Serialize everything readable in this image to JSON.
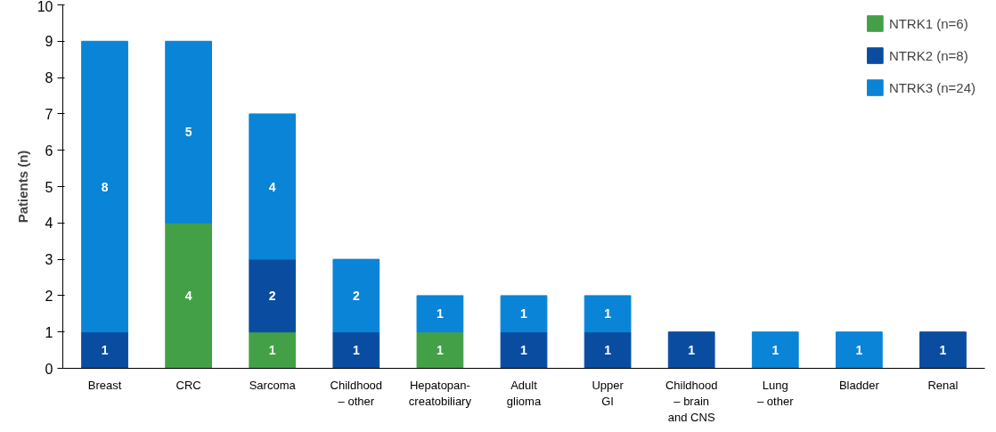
{
  "chart_data": {
    "type": "bar",
    "stacked": true,
    "ylabel": "Patients (n)",
    "categories": [
      "Breast",
      "CRC",
      "Sarcoma",
      "Childhood\n– other",
      "Hepatopan-\ncreatobiliary",
      "Adult\nglioma",
      "Upper\nGI",
      "Childhood\n– brain\nand CNS",
      "Lung\n– other",
      "Bladder",
      "Renal"
    ],
    "series": [
      {
        "name": "NTRK1 (n=6)",
        "color": "#43a047",
        "values": [
          null,
          4,
          1,
          null,
          1,
          null,
          null,
          null,
          null,
          null,
          null
        ]
      },
      {
        "name": "NTRK2 (n=8)",
        "color": "#0a4da0",
        "values": [
          1,
          null,
          2,
          1,
          null,
          1,
          1,
          1,
          null,
          null,
          1
        ]
      },
      {
        "name": "NTRK3 (n=24)",
        "color": "#0a84d6",
        "values": [
          8,
          5,
          4,
          2,
          1,
          1,
          1,
          null,
          1,
          1,
          null
        ]
      }
    ],
    "ylim": [
      0,
      10
    ],
    "yticks": [
      0,
      1,
      2,
      3,
      4,
      5,
      6,
      7,
      8,
      9,
      10
    ],
    "grid": false,
    "legend": "top right",
    "data_labels": true
  }
}
